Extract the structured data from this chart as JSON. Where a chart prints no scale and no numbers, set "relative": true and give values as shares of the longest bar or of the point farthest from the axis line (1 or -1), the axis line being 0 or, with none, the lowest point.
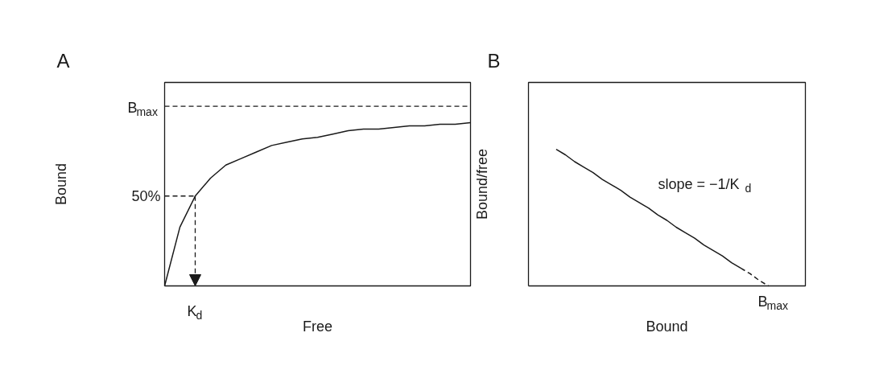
{
  "chart_data": [
    {
      "type": "line",
      "title": "A",
      "xlabel": "Free",
      "ylabel": "Bound",
      "relative": true,
      "categories": [
        null,
        null,
        null,
        null,
        null,
        null,
        null,
        null,
        null,
        null,
        null,
        null,
        null,
        null,
        null,
        null,
        null,
        null,
        null,
        null,
        null
      ],
      "marker": "none",
      "series": [
        {
          "color": "#1a1a1a",
          "line_style": "solid",
          "values": [
            0,
            0.36,
            0.55,
            0.66,
            0.74,
            0.78,
            0.82,
            0.86,
            0.88,
            0.9,
            0.91,
            0.93,
            0.95,
            0.96,
            0.96,
            0.97,
            0.98,
            0.98,
            0.99,
            0.99,
            1
          ]
        },
        {
          "color": "#1a1a1a",
          "line_style": "dashed",
          "values": [
            0.55,
            0.55,
            0.55,
            null,
            null,
            null,
            null,
            null,
            null,
            null,
            null,
            null,
            null,
            null,
            null,
            null,
            null,
            null,
            null,
            null,
            null
          ]
        }
      ],
      "ref_lines": [
        {
          "axis": "y",
          "value": 1.1,
          "line_style": "dashed",
          "color": "#1a1a1a"
        }
      ],
      "annotations": [
        "K$_{d}$",
        "50%",
        "B$_{max}$"
      ]
    },
    {
      "type": "line",
      "title": "B",
      "xlabel": "Bound",
      "ylabel": "Bound/free",
      "relative": true,
      "categories": [
        null,
        null,
        null,
        null,
        null,
        null,
        null,
        null,
        null,
        null,
        null,
        null,
        null,
        null,
        null,
        null,
        null,
        null,
        null,
        null,
        null,
        null,
        null,
        null,
        null,
        null,
        null,
        null,
        null,
        null,
        null
      ],
      "marker": "none",
      "series": [
        {
          "color": "#1a1a1a",
          "line_style": "solid",
          "values": [
            null,
            null,
            null,
            1,
            0.96,
            0.91,
            0.87,
            0.83,
            0.78,
            0.74,
            0.7,
            0.65,
            0.61,
            0.57,
            0.52,
            0.48,
            0.43,
            0.39,
            0.35,
            0.3,
            0.26,
            0.22,
            0.17,
            0.13,
            null,
            null,
            null,
            null,
            null,
            null,
            null
          ]
        },
        {
          "color": "#1a1a1a",
          "line_style": "dashed",
          "values": [
            null,
            null,
            null,
            null,
            null,
            null,
            null,
            null,
            null,
            null,
            null,
            null,
            null,
            null,
            null,
            null,
            null,
            null,
            null,
            null,
            null,
            null,
            null,
            0.13,
            0.09,
            0.04,
            0,
            null,
            null,
            null,
            null
          ]
        }
      ],
      "annotations": [
        "slope = −1/K$_{d}$",
        "B$_{max}$"
      ]
    }
  ]
}
